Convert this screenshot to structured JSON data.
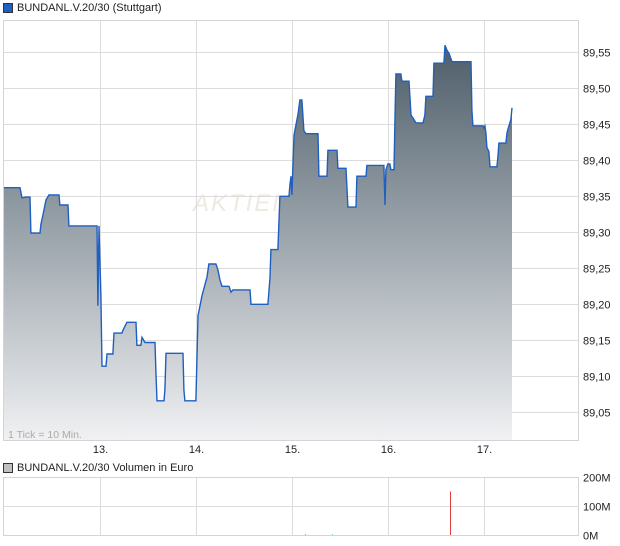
{
  "price_legend": {
    "label": "BUNDANL.V.20/30 (Stuttgart)",
    "color": "#1f5fbf"
  },
  "volume_legend": {
    "label": "BUNDANL.V.20/30 Volumen in Euro",
    "color": "#c0c0c0"
  },
  "tick_note": "1 Tick = 10 Min.",
  "watermark": "AKTIEN",
  "chart_data": [
    {
      "type": "area",
      "xlim": [
        11.99,
        17.98
      ],
      "ylim": [
        89.0115,
        89.595
      ],
      "grid": true,
      "x_ticks": [
        {
          "v": 13,
          "label": "13."
        },
        {
          "v": 14,
          "label": "14."
        },
        {
          "v": 15,
          "label": "15."
        },
        {
          "v": 16,
          "label": "16."
        },
        {
          "v": 17,
          "label": "17."
        }
      ],
      "y_ticks": [
        {
          "v": 89.05,
          "label": "89,05"
        },
        {
          "v": 89.1,
          "label": "89,10"
        },
        {
          "v": 89.15,
          "label": "89,15"
        },
        {
          "v": 89.2,
          "label": "89,20"
        },
        {
          "v": 89.25,
          "label": "89,25"
        },
        {
          "v": 89.3,
          "label": "89,30"
        },
        {
          "v": 89.35,
          "label": "89,35"
        },
        {
          "v": 89.4,
          "label": "89,40"
        },
        {
          "v": 89.45,
          "label": "89,45"
        },
        {
          "v": 89.5,
          "label": "89,50"
        },
        {
          "v": 89.55,
          "label": "89,55"
        }
      ],
      "line_color": "#1f5fbf",
      "fill_top": "#4e5e6a",
      "fill_bottom": "#f0f1f3",
      "points": [
        [
          11.99,
          89.362
        ],
        [
          12.167,
          89.362
        ],
        [
          12.188,
          89.348
        ],
        [
          12.229,
          89.349
        ],
        [
          12.271,
          89.349
        ],
        [
          12.281,
          89.299
        ],
        [
          12.375,
          89.299
        ],
        [
          12.385,
          89.311
        ],
        [
          12.406,
          89.324
        ],
        [
          12.438,
          89.345
        ],
        [
          12.469,
          89.352
        ],
        [
          12.573,
          89.352
        ],
        [
          12.583,
          89.338
        ],
        [
          12.667,
          89.338
        ],
        [
          12.677,
          89.309
        ],
        [
          12.969,
          89.309
        ],
        [
          12.979,
          89.198
        ],
        [
          12.99,
          89.309
        ],
        [
          13.01,
          89.212
        ],
        [
          13.021,
          89.114
        ],
        [
          13.063,
          89.114
        ],
        [
          13.073,
          89.131
        ],
        [
          13.135,
          89.131
        ],
        [
          13.146,
          89.16
        ],
        [
          13.229,
          89.16
        ],
        [
          13.24,
          89.164
        ],
        [
          13.281,
          89.175
        ],
        [
          13.375,
          89.175
        ],
        [
          13.385,
          89.143
        ],
        [
          13.427,
          89.143
        ],
        [
          13.438,
          89.154
        ],
        [
          13.469,
          89.147
        ],
        [
          13.573,
          89.147
        ],
        [
          13.583,
          89.106
        ],
        [
          13.594,
          89.066
        ],
        [
          13.667,
          89.066
        ],
        [
          13.677,
          89.081
        ],
        [
          13.688,
          89.132
        ],
        [
          13.865,
          89.132
        ],
        [
          13.875,
          89.081
        ],
        [
          13.885,
          89.066
        ],
        [
          14.0,
          89.066
        ],
        [
          14.01,
          89.123
        ],
        [
          14.021,
          89.184
        ],
        [
          14.063,
          89.212
        ],
        [
          14.115,
          89.238
        ],
        [
          14.135,
          89.256
        ],
        [
          14.208,
          89.256
        ],
        [
          14.229,
          89.248
        ],
        [
          14.25,
          89.234
        ],
        [
          14.271,
          89.225
        ],
        [
          14.344,
          89.225
        ],
        [
          14.365,
          89.217
        ],
        [
          14.385,
          89.22
        ],
        [
          14.563,
          89.22
        ],
        [
          14.573,
          89.2
        ],
        [
          14.75,
          89.2
        ],
        [
          14.771,
          89.237
        ],
        [
          14.781,
          89.276
        ],
        [
          14.854,
          89.276
        ],
        [
          14.875,
          89.35
        ],
        [
          14.969,
          89.35
        ],
        [
          14.979,
          89.366
        ],
        [
          14.99,
          89.378
        ],
        [
          15.0,
          89.352
        ],
        [
          15.021,
          89.435
        ],
        [
          15.063,
          89.464
        ],
        [
          15.083,
          89.484
        ],
        [
          15.104,
          89.484
        ],
        [
          15.125,
          89.441
        ],
        [
          15.146,
          89.437
        ],
        [
          15.271,
          89.437
        ],
        [
          15.281,
          89.378
        ],
        [
          15.365,
          89.378
        ],
        [
          15.375,
          89.414
        ],
        [
          15.469,
          89.414
        ],
        [
          15.479,
          89.389
        ],
        [
          15.563,
          89.389
        ],
        [
          15.583,
          89.335
        ],
        [
          15.667,
          89.335
        ],
        [
          15.677,
          89.378
        ],
        [
          15.771,
          89.378
        ],
        [
          15.781,
          89.393
        ],
        [
          15.958,
          89.393
        ],
        [
          15.969,
          89.338
        ],
        [
          15.979,
          89.387
        ],
        [
          16.0,
          89.395
        ],
        [
          16.021,
          89.395
        ],
        [
          16.031,
          89.387
        ],
        [
          16.063,
          89.387
        ],
        [
          16.073,
          89.453
        ],
        [
          16.083,
          89.52
        ],
        [
          16.135,
          89.52
        ],
        [
          16.146,
          89.51
        ],
        [
          16.219,
          89.51
        ],
        [
          16.24,
          89.463
        ],
        [
          16.26,
          89.459
        ],
        [
          16.292,
          89.452
        ],
        [
          16.365,
          89.452
        ],
        [
          16.385,
          89.463
        ],
        [
          16.396,
          89.489
        ],
        [
          16.469,
          89.489
        ],
        [
          16.479,
          89.535
        ],
        [
          16.583,
          89.535
        ],
        [
          16.594,
          89.56
        ],
        [
          16.615,
          89.553
        ],
        [
          16.635,
          89.549
        ],
        [
          16.667,
          89.537
        ],
        [
          16.865,
          89.537
        ],
        [
          16.875,
          89.47
        ],
        [
          16.885,
          89.448
        ],
        [
          16.99,
          89.448
        ],
        [
          17.0,
          89.445
        ],
        [
          17.01,
          89.448
        ],
        [
          17.021,
          89.438
        ],
        [
          17.031,
          89.418
        ],
        [
          17.052,
          89.412
        ],
        [
          17.063,
          89.391
        ],
        [
          17.135,
          89.391
        ],
        [
          17.146,
          89.405
        ],
        [
          17.156,
          89.424
        ],
        [
          17.229,
          89.424
        ],
        [
          17.24,
          89.438
        ],
        [
          17.25,
          89.443
        ],
        [
          17.281,
          89.457
        ],
        [
          17.292,
          89.473
        ]
      ]
    },
    {
      "type": "bar",
      "ylim": [
        0,
        200000000
      ],
      "y_ticks": [
        {
          "v": 0,
          "label": "0M"
        },
        {
          "v": 100000000,
          "label": "100M"
        },
        {
          "v": 200000000,
          "label": "200M"
        }
      ],
      "bars": [
        {
          "x": 15.135,
          "value": 2000000,
          "color": "#e04040"
        },
        {
          "x": 15.417,
          "value": 2000000,
          "color": "#40c040"
        },
        {
          "x": 16.646,
          "value": 150000000,
          "color": "#e04040"
        }
      ]
    }
  ]
}
